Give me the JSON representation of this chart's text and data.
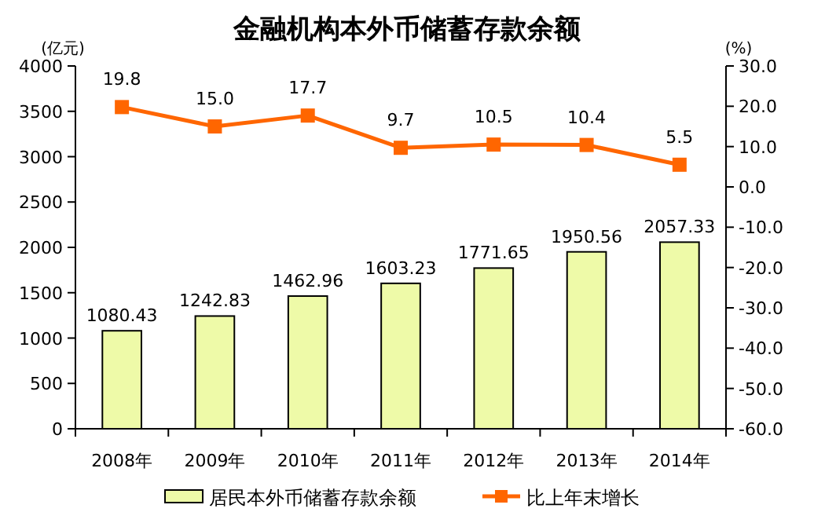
{
  "chart_data": {
    "type": "bar",
    "title": "金融机构本外币储蓄存款余额",
    "ylabel": "(亿元)",
    "y2label": "(%)",
    "categories": [
      "2008年",
      "2009年",
      "2010年",
      "2011年",
      "2012年",
      "2013年",
      "2014年"
    ],
    "series": [
      {
        "name": "居民本外币储蓄存款余额",
        "color": "#eefaa8",
        "values": [
          1080.43,
          1242.83,
          1462.96,
          1603.23,
          1771.65,
          1950.56,
          2057.33
        ],
        "value_labels": [
          "1080.43",
          "1242.83",
          "1462.96",
          "1603.23",
          "1771.65",
          "1950.56",
          "2057.33"
        ]
      },
      {
        "name": "比上年末增长",
        "type": "line",
        "axis": "y2",
        "color": "#ff6600",
        "marker": "square",
        "values": [
          19.8,
          15.0,
          17.7,
          9.7,
          10.5,
          10.4,
          5.5
        ],
        "value_labels": [
          "19.8",
          "15.0",
          "17.7",
          "9.7",
          "10.5",
          "10.4",
          "5.5"
        ]
      }
    ],
    "ylim": [
      0,
      4000
    ],
    "yticks": [
      0,
      500,
      1000,
      1500,
      2000,
      2500,
      3000,
      3500,
      4000
    ],
    "y2lim": [
      -60,
      30
    ],
    "y2ticks": [
      {
        "value": -60,
        "label": "-60.0"
      },
      {
        "value": -50,
        "label": "-50.0"
      },
      {
        "value": -40,
        "label": "-40.0"
      },
      {
        "value": -30,
        "label": "-30.0"
      },
      {
        "value": -20,
        "label": "-20.0"
      },
      {
        "value": -10,
        "label": "-10.0"
      },
      {
        "value": 0,
        "label": "0.0"
      },
      {
        "value": 10,
        "label": "10.0"
      },
      {
        "value": 20,
        "label": "20.0"
      },
      {
        "value": 30,
        "label": "30.0"
      }
    ],
    "grid": false,
    "legend": "bottom"
  }
}
